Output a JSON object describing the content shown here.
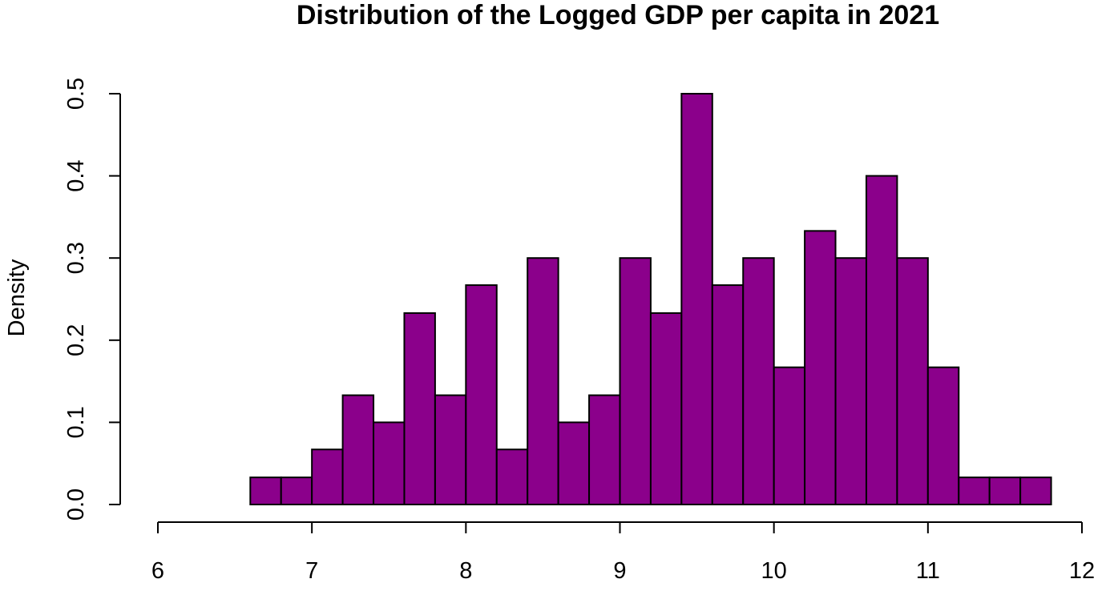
{
  "chart_data": {
    "type": "bar",
    "title": "Distribution of the Logged GDP per capita in 2021",
    "xlabel": "",
    "ylabel": "Density",
    "bar_color": "#8B008B",
    "bin_width": 0.2,
    "bin_starts": [
      6.6,
      6.8,
      7.0,
      7.2,
      7.4,
      7.6,
      7.8,
      8.0,
      8.2,
      8.4,
      8.6,
      8.8,
      9.0,
      9.2,
      9.4,
      9.6,
      9.8,
      10.0,
      10.2,
      10.4,
      10.6,
      10.8,
      11.0,
      11.2,
      11.4,
      11.6
    ],
    "values": [
      0.033,
      0.033,
      0.067,
      0.133,
      0.1,
      0.233,
      0.133,
      0.267,
      0.067,
      0.3,
      0.1,
      0.133,
      0.3,
      0.233,
      0.5,
      0.267,
      0.3,
      0.167,
      0.333,
      0.3,
      0.4,
      0.3,
      0.167,
      0.033,
      0.033,
      0.033
    ],
    "xlim": [
      6,
      12
    ],
    "ylim": [
      0,
      0.5
    ],
    "x_ticks": [
      "6",
      "7",
      "8",
      "9",
      "10",
      "11",
      "12"
    ],
    "y_ticks": [
      "0.0",
      "0.1",
      "0.2",
      "0.3",
      "0.4",
      "0.5"
    ],
    "grid": false,
    "legend": "none"
  }
}
